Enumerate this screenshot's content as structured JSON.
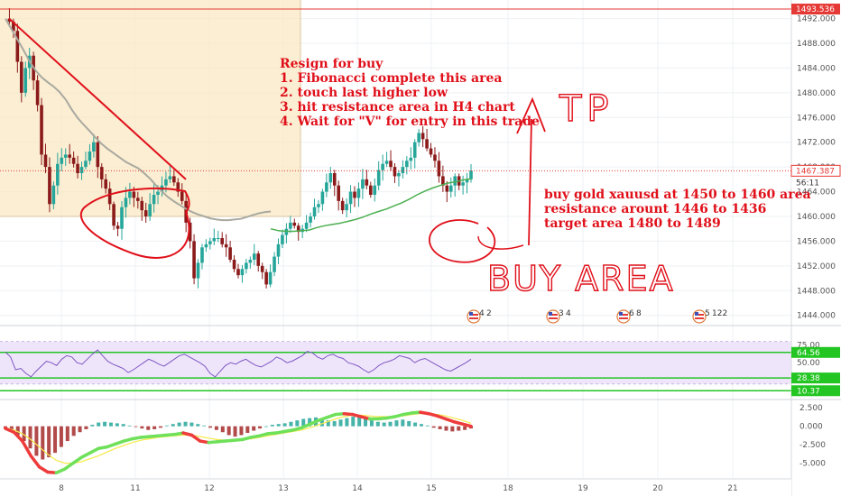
{
  "chart_data": [
    {
      "type": "candlestick",
      "title": "",
      "x_ticks": [
        "8",
        "11",
        "12",
        "13",
        "14",
        "15",
        "18",
        "19",
        "20",
        "21"
      ],
      "y_ticks": [
        "1492.000",
        "1488.000",
        "1484.000",
        "1480.000",
        "1476.000",
        "1472.000",
        "1468.000",
        "1464.000",
        "1460.000",
        "1456.000",
        "1452.000",
        "1448.000",
        "1444.000"
      ],
      "ylim": [
        1442.5,
        1495
      ],
      "price_labels": {
        "resistance": "1493.536",
        "current": "1467.387",
        "countdown": "56:11"
      },
      "close_path": [
        1492.0,
        1491.5,
        1490.0,
        1485.0,
        1480.0,
        1484.0,
        1486.0,
        1482.0,
        1478.0,
        1470.0,
        1468.0,
        1462.0,
        1465.0,
        1468.5,
        1469.5,
        1470.0,
        1469.5,
        1468.5,
        1467.0,
        1468.0,
        1469.0,
        1470.5,
        1472.0,
        1468.0,
        1466.0,
        1464.5,
        1462.0,
        1458.5,
        1458.0,
        1461.5,
        1463.0,
        1464.0,
        1463.0,
        1462.5,
        1461.0,
        1460.0,
        1462.0,
        1463.5,
        1464.0,
        1465.0,
        1466.0,
        1466.5,
        1465.5,
        1464.0,
        1462.5,
        1459.0,
        1456.0,
        1450.0,
        1452.5,
        1455.0,
        1455.5,
        1456.0,
        1456.5,
        1456.5,
        1455.5,
        1455.0,
        1453.0,
        1451.5,
        1450.5,
        1451.5,
        1452.5,
        1453.0,
        1454.0,
        1452.0,
        1451.0,
        1449.0,
        1451.0,
        1453.5,
        1455.5,
        1457.0,
        1458.0,
        1459.0,
        1458.5,
        1457.5,
        1458.0,
        1459.0,
        1460.0,
        1461.5,
        1462.0,
        1464.0,
        1465.5,
        1467.0,
        1465.0,
        1462.5,
        1461.0,
        1462.0,
        1464.0,
        1463.0,
        1464.5,
        1466.0,
        1465.0,
        1463.5,
        1465.0,
        1467.5,
        1468.5,
        1469.0,
        1468.0,
        1466.5,
        1467.0,
        1468.0,
        1469.0,
        1469.5,
        1472.0,
        1473.5,
        1472.5,
        1471.0,
        1470.0,
        1469.0,
        1466.5,
        1465.0,
        1464.0,
        1465.0,
        1466.5,
        1465.0,
        1465.5,
        1466.0,
        1467.4
      ],
      "moving_averages": [
        {
          "color": "#a9a9a0",
          "values": [
            1492.0,
            1490.3,
            1488.6,
            1486.9,
            1485.1,
            1483.6,
            1482.5,
            1481.7,
            1481.0,
            1480.1,
            1478.9,
            1477.3,
            1475.9,
            1474.8,
            1473.8,
            1472.7,
            1471.7,
            1470.9,
            1470.2,
            1469.5,
            1468.8,
            1468.3,
            1467.8,
            1467.0,
            1466.1,
            1465.0,
            1464.0,
            1463.1,
            1462.4,
            1461.8,
            1461.2,
            1460.7,
            1460.3,
            1460.0,
            1459.7,
            1459.5,
            1459.4,
            1459.4,
            1459.5,
            1459.6,
            1459.9,
            1460.2,
            1460.5,
            1460.7,
            1460.8
          ]
        },
        {
          "color": "#4caf50",
          "values": [
            1458.0,
            1457.7,
            1457.6,
            1457.6,
            1457.7,
            1457.8,
            1458.2,
            1458.5,
            1458.7,
            1458.9,
            1459.2,
            1459.5,
            1459.9,
            1460.4,
            1460.8,
            1461.2,
            1461.7,
            1462.2,
            1462.8,
            1463.5,
            1464.1,
            1464.6,
            1465.0,
            1465.4,
            1465.6,
            1465.9,
            1466.1
          ]
        }
      ],
      "trendline": {
        "color": "#e0101a",
        "from": [
          "start",
          1492.0
        ],
        "to": [
          "11",
          1466.0
        ]
      },
      "shaded_zone": {
        "color": "#f9e8c4",
        "y_range": [
          1460.0,
          1495.0
        ],
        "x_until": "13"
      },
      "annotation_title": "Resign for buy",
      "annotation_lines": [
        "1. Fibonacci complete this area",
        "2. touch last higher low",
        "3. hit resistance area in H4 chart",
        "4. Wait for \"V\" for entry in this trade"
      ],
      "annotation_right": [
        "buy gold xauusd at 1450 to 1460 area",
        "resistance arount 1446 to 1436",
        "target area 1480 to 1489"
      ],
      "handwritten": {
        "tp": "TP",
        "buy_area": "BUY AREA"
      },
      "event_badges": [
        "4",
        "2",
        "3",
        "4",
        "6",
        "8",
        "5",
        "122"
      ]
    },
    {
      "type": "line",
      "y_ticks": [
        "75.00",
        "50.00",
        "25.00"
      ],
      "level_labels": {
        "upper": "64.56",
        "lower": "28.38",
        "bottom": "10.37"
      },
      "values": [
        65,
        58,
        40,
        42,
        35,
        30,
        38,
        45,
        52,
        50,
        46,
        55,
        60,
        58,
        50,
        48,
        55,
        62,
        68,
        60,
        52,
        48,
        45,
        42,
        36,
        40,
        45,
        50,
        55,
        52,
        48,
        45,
        50,
        55,
        60,
        62,
        58,
        54,
        50,
        45,
        35,
        30,
        38,
        46,
        50,
        48,
        52,
        55,
        50,
        46,
        44,
        48,
        52,
        58,
        55,
        50,
        52,
        56,
        60,
        66,
        64,
        58,
        55,
        60,
        62,
        58,
        56,
        50,
        48,
        45,
        40,
        36,
        40,
        46,
        50,
        52,
        55,
        60,
        58,
        56,
        50,
        54,
        56,
        52,
        48,
        44,
        40,
        38,
        42,
        46,
        50,
        55
      ]
    },
    {
      "type": "bar",
      "y_ticks": [
        "2.500",
        "0.000",
        "-2.500",
        "-5.000"
      ],
      "histogram": [
        -0.3,
        -0.6,
        -1.2,
        -2.0,
        -3.0,
        -4.0,
        -4.5,
        -4.2,
        -3.6,
        -2.8,
        -2.0,
        -1.3,
        -0.8,
        -0.4,
        0.2,
        0.5,
        0.6,
        0.5,
        0.4,
        0.3,
        0.1,
        -0.1,
        -0.3,
        -0.5,
        -0.4,
        -0.2,
        0.1,
        0.3,
        0.5,
        0.6,
        0.5,
        0.3,
        0.1,
        -0.2,
        -0.5,
        -0.8,
        -1.2,
        -1.4,
        -1.2,
        -0.9,
        -0.6,
        -0.3,
        0.0,
        0.2,
        0.3,
        0.4,
        0.6,
        0.8,
        1.0,
        1.1,
        1.2,
        1.0,
        0.8,
        0.7,
        0.9,
        1.1,
        1.3,
        1.2,
        1.0,
        0.8,
        0.6,
        0.5,
        0.6,
        0.8,
        0.9,
        0.7,
        0.5,
        0.3,
        0.1,
        -0.2,
        -0.4,
        -0.6,
        -0.7,
        -0.6,
        -0.5,
        -0.3
      ],
      "macd": [
        -0.3,
        -0.8,
        -2.0,
        -4.0,
        -5.5,
        -6.2,
        -6.3,
        -5.8,
        -5.0,
        -4.2,
        -3.6,
        -3.0,
        -2.8,
        -2.4,
        -2.0,
        -1.7,
        -1.5,
        -1.4,
        -1.3,
        -1.2,
        -1.1,
        -0.9,
        -1.2,
        -2.0,
        -2.2,
        -2.1,
        -2.0,
        -1.9,
        -1.8,
        -1.5,
        -1.3,
        -1.0,
        -0.9,
        -0.7,
        -0.5,
        -0.2,
        0.3,
        0.8,
        1.2,
        1.6,
        1.7,
        1.6,
        1.3,
        1.0,
        1.0,
        1.1,
        1.3,
        1.6,
        1.8,
        1.9,
        1.7,
        1.4,
        1.0,
        0.6,
        0.3,
        0.0
      ],
      "signal": [
        -0.2,
        -0.5,
        -1.0,
        -1.8,
        -2.8,
        -3.8,
        -4.6,
        -5.0,
        -5.0,
        -4.8,
        -4.4,
        -4.0,
        -3.5,
        -3.0,
        -2.6,
        -2.2,
        -1.9,
        -1.7,
        -1.5,
        -1.4,
        -1.3,
        -1.2,
        -1.2,
        -1.4,
        -1.6,
        -1.8,
        -1.9,
        -1.9,
        -1.8,
        -1.7,
        -1.5,
        -1.3,
        -1.1,
        -0.9,
        -0.7,
        -0.5,
        -0.2,
        0.2,
        0.6,
        1.0,
        1.3,
        1.5,
        1.5,
        1.4,
        1.3,
        1.3,
        1.3,
        1.4,
        1.6,
        1.7,
        1.7,
        1.6,
        1.4,
        1.1,
        0.8,
        0.4
      ],
      "macd_up_color": "#6fe05a",
      "macd_down_color": "#ee3b3b",
      "signal_color": "#f5ea4a",
      "hist_up_color": "#26a69a",
      "hist_down_color": "#a52a2a"
    }
  ]
}
